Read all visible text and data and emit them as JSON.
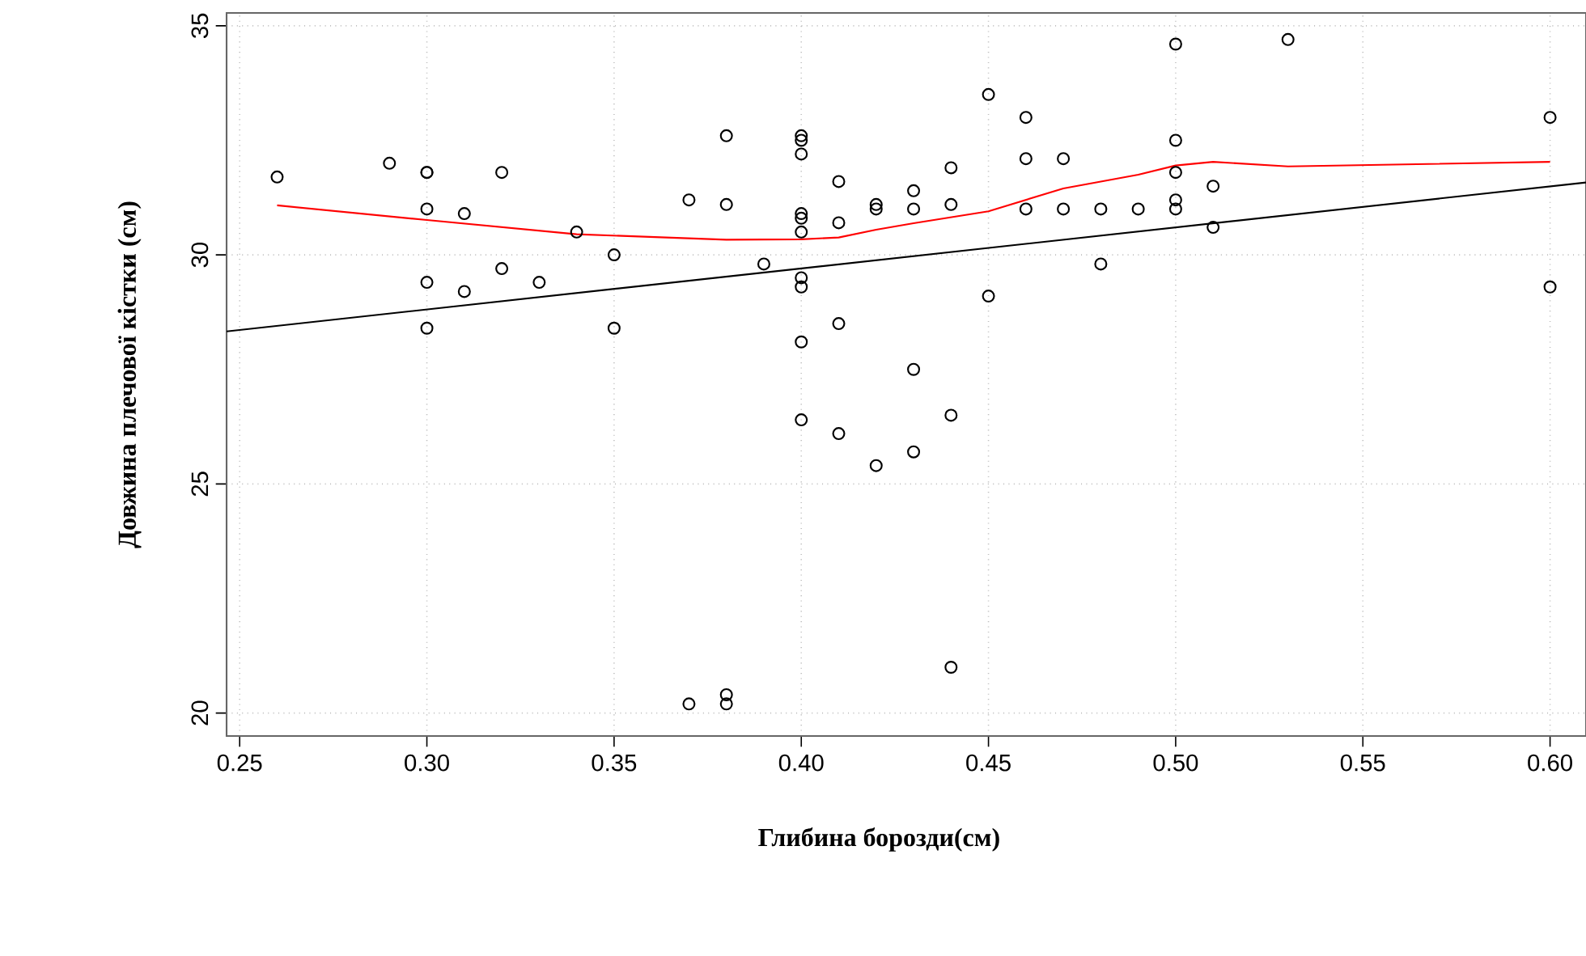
{
  "chart_data": {
    "type": "scatter",
    "xlabel": "Глибина борозди(см)",
    "ylabel": "Довжина плечової кістки (см)",
    "xlim": [
      0.2465,
      0.6096
    ],
    "ylim": [
      19.5,
      35.28
    ],
    "xticks": [
      0.25,
      {
        "value": 0.3,
        "label": "0.30"
      },
      0.35,
      {
        "value": 0.4,
        "label": "0.40"
      },
      0.45,
      {
        "value": 0.5,
        "label": "0.50"
      },
      0.55,
      {
        "value": 0.6,
        "label": "0.60"
      }
    ],
    "yticks": [
      20,
      25,
      30,
      35
    ],
    "grid": true,
    "marker": "circle",
    "series": [
      {
        "color": "#000000",
        "x": [
          0.26,
          0.29,
          0.3,
          0.3,
          0.3,
          0.3,
          0.3,
          0.31,
          0.31,
          0.32,
          0.32,
          0.33,
          0.34,
          0.35,
          0.35,
          0.37,
          0.37,
          0.38,
          0.38,
          0.38,
          0.38,
          0.39,
          0.4,
          0.4,
          0.4,
          0.4,
          0.4,
          0.4,
          0.4,
          0.4,
          0.4,
          0.4,
          0.41,
          0.41,
          0.41,
          0.41,
          0.42,
          0.42,
          0.42,
          0.43,
          0.43,
          0.43,
          0.43,
          0.44,
          0.44,
          0.44,
          0.44,
          0.45,
          0.45,
          0.46,
          0.46,
          0.46,
          0.47,
          0.47,
          0.48,
          0.48,
          0.49,
          0.5,
          0.5,
          0.5,
          0.5,
          0.5,
          0.51,
          0.51,
          0.53,
          0.6,
          0.6
        ],
        "values": [
          31.7,
          32.0,
          31.8,
          31.8,
          31.0,
          29.4,
          28.4,
          30.9,
          29.2,
          31.8,
          29.7,
          29.4,
          30.5,
          30.0,
          28.4,
          31.2,
          20.2,
          32.6,
          31.1,
          20.4,
          20.2,
          29.8,
          32.6,
          32.5,
          32.2,
          30.9,
          30.8,
          30.5,
          29.5,
          29.3,
          28.1,
          26.4,
          31.6,
          30.7,
          28.5,
          26.1,
          31.1,
          31.0,
          25.4,
          31.4,
          31.0,
          27.5,
          25.7,
          31.9,
          31.1,
          26.5,
          21.0,
          33.5,
          29.1,
          33.0,
          32.1,
          31.0,
          32.1,
          31.0,
          31.0,
          29.8,
          31.0,
          34.6,
          32.5,
          31.8,
          31.2,
          31.0,
          31.5,
          30.6,
          34.7,
          33.0,
          29.3
        ]
      },
      {
        "type": "line",
        "marker": "none",
        "color": "#000000",
        "x": [
          0.2465,
          0.6096
        ],
        "values": [
          28.33,
          31.58
        ]
      },
      {
        "type": "line",
        "marker": "none",
        "color": "#ff0000",
        "x": [
          0.26,
          0.3,
          0.34,
          0.38,
          0.4,
          0.41,
          0.42,
          0.43,
          0.45,
          0.47,
          0.49,
          0.5,
          0.51,
          0.53,
          0.6
        ],
        "values": [
          31.08,
          30.76,
          30.45,
          30.33,
          30.34,
          30.38,
          30.55,
          30.69,
          30.95,
          31.45,
          31.75,
          31.95,
          32.03,
          31.93,
          32.03
        ]
      }
    ]
  }
}
